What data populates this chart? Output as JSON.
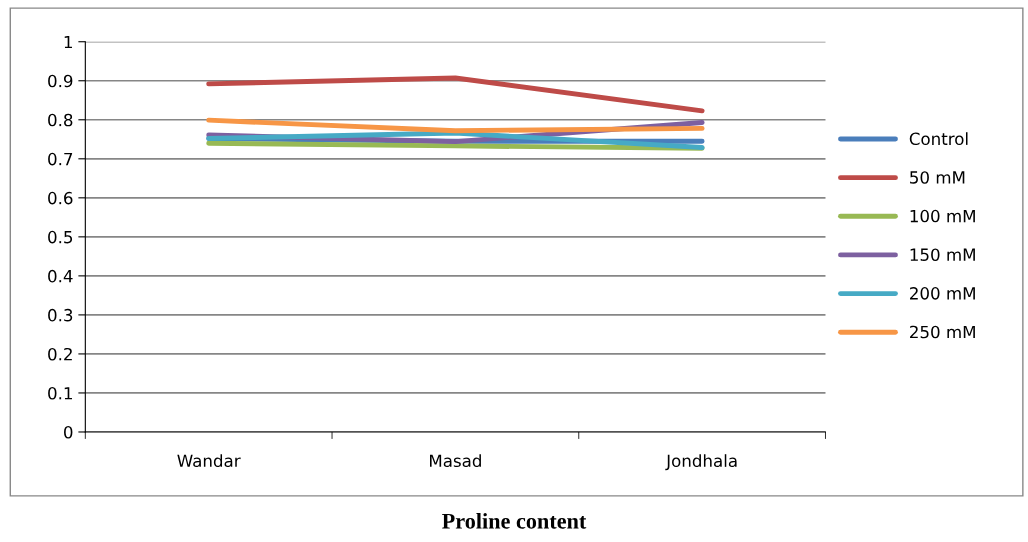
{
  "chart_data": {
    "type": "line",
    "title": "Proline content",
    "categories": [
      "Wandar",
      "Masad",
      "Jondhala"
    ],
    "series": [
      {
        "name": "Control",
        "color": "#4a7ebb",
        "values": [
          0.752,
          0.745,
          0.745
        ]
      },
      {
        "name": "50 mM",
        "color": "#be4b48",
        "values": [
          0.892,
          0.907,
          0.823
        ]
      },
      {
        "name": "100 mM",
        "color": "#98b954",
        "values": [
          0.74,
          0.733,
          0.727
        ]
      },
      {
        "name": "150 mM",
        "color": "#7d60a0",
        "values": [
          0.761,
          0.744,
          0.793
        ]
      },
      {
        "name": "200 mM",
        "color": "#46aac5",
        "values": [
          0.752,
          0.766,
          0.729
        ]
      },
      {
        "name": "250 mM",
        "color": "#f79646",
        "values": [
          0.799,
          0.772,
          0.778
        ]
      }
    ],
    "ylim": [
      0,
      1
    ],
    "yticks": [
      0,
      0.1,
      0.2,
      0.3,
      0.4,
      0.5,
      0.6,
      0.7,
      0.8,
      0.9,
      1
    ],
    "grid": "y",
    "legend": "right",
    "marker": "none",
    "line_style": "solid"
  }
}
